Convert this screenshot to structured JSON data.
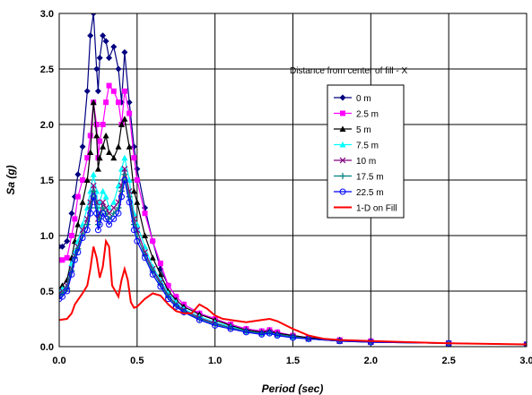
{
  "chart_data": {
    "type": "line",
    "xlabel": "Period (sec)",
    "ylabel": "Sa (g)",
    "xlim": [
      0,
      3.0
    ],
    "ylim": [
      0,
      3.0
    ],
    "x_ticks": [
      "0.0",
      "0.5",
      "1.0",
      "1.5",
      "2.0",
      "2.5",
      "3.0"
    ],
    "y_ticks": [
      "0.0",
      "0.5",
      "1.0",
      "1.5",
      "2.0",
      "2.5",
      "3.0"
    ],
    "grid": true,
    "legend_title": "Distance from center of fill - X",
    "legend_position": "top-right",
    "series": [
      {
        "name": "0 m",
        "color": "#000080",
        "marker": "diamond",
        "x": [
          0,
          0.02,
          0.05,
          0.08,
          0.1,
          0.12,
          0.15,
          0.18,
          0.2,
          0.22,
          0.24,
          0.25,
          0.26,
          0.28,
          0.3,
          0.32,
          0.35,
          0.38,
          0.4,
          0.42,
          0.45,
          0.48,
          0.5,
          0.55,
          0.6,
          0.65,
          0.7,
          0.75,
          0.8,
          0.9,
          1.0,
          1.1,
          1.2,
          1.3,
          1.35,
          1.4,
          1.5,
          1.6,
          1.8,
          2.0,
          2.5,
          3.0
        ],
        "y": [
          0.9,
          0.9,
          0.95,
          1.2,
          1.35,
          1.55,
          1.8,
          2.3,
          2.8,
          3.0,
          2.5,
          2.3,
          2.6,
          2.8,
          2.75,
          2.6,
          2.7,
          2.5,
          2.2,
          2.65,
          2.2,
          1.8,
          1.6,
          1.25,
          0.95,
          0.7,
          0.55,
          0.45,
          0.38,
          0.3,
          0.25,
          0.2,
          0.16,
          0.14,
          0.15,
          0.13,
          0.1,
          0.08,
          0.06,
          0.05,
          0.03,
          0.02
        ]
      },
      {
        "name": "2.5 m",
        "color": "#ff00ff",
        "marker": "square",
        "x": [
          0,
          0.02,
          0.05,
          0.08,
          0.1,
          0.12,
          0.15,
          0.18,
          0.2,
          0.22,
          0.24,
          0.25,
          0.26,
          0.28,
          0.3,
          0.32,
          0.35,
          0.38,
          0.4,
          0.42,
          0.45,
          0.48,
          0.5,
          0.55,
          0.6,
          0.65,
          0.7,
          0.75,
          0.8,
          0.9,
          1.0,
          1.1,
          1.2,
          1.3,
          1.35,
          1.4,
          1.5,
          1.6,
          1.8,
          2.0,
          2.5,
          3.0
        ],
        "y": [
          0.78,
          0.78,
          0.8,
          1.0,
          1.15,
          1.35,
          1.5,
          1.7,
          1.9,
          2.2,
          2.0,
          1.7,
          1.85,
          2.0,
          2.2,
          2.35,
          2.3,
          2.2,
          2.0,
          2.3,
          2.1,
          1.7,
          1.5,
          1.2,
          0.95,
          0.75,
          0.55,
          0.45,
          0.38,
          0.3,
          0.25,
          0.2,
          0.16,
          0.14,
          0.15,
          0.13,
          0.1,
          0.08,
          0.06,
          0.05,
          0.03,
          0.02
        ]
      },
      {
        "name": "5 m",
        "color": "#000000",
        "marker": "triangle",
        "x": [
          0,
          0.02,
          0.05,
          0.08,
          0.1,
          0.12,
          0.15,
          0.18,
          0.2,
          0.22,
          0.24,
          0.25,
          0.26,
          0.28,
          0.3,
          0.32,
          0.35,
          0.38,
          0.4,
          0.42,
          0.45,
          0.48,
          0.5,
          0.55,
          0.6,
          0.65,
          0.7,
          0.75,
          0.8,
          0.9,
          1.0,
          1.1,
          1.2,
          1.3,
          1.35,
          1.4,
          1.5,
          1.6,
          1.8,
          2.0,
          2.5,
          3.0
        ],
        "y": [
          0.52,
          0.55,
          0.6,
          0.8,
          0.95,
          1.1,
          1.3,
          1.5,
          1.75,
          2.2,
          1.9,
          1.6,
          1.7,
          1.8,
          1.9,
          1.75,
          1.7,
          1.8,
          2.0,
          2.05,
          1.8,
          1.4,
          1.3,
          1.0,
          0.8,
          0.65,
          0.5,
          0.42,
          0.36,
          0.29,
          0.24,
          0.19,
          0.15,
          0.13,
          0.14,
          0.12,
          0.1,
          0.08,
          0.06,
          0.05,
          0.03,
          0.02
        ]
      },
      {
        "name": "7.5 m",
        "color": "#00ffff",
        "marker": "triangle",
        "x": [
          0,
          0.02,
          0.05,
          0.08,
          0.1,
          0.12,
          0.15,
          0.18,
          0.2,
          0.22,
          0.24,
          0.25,
          0.26,
          0.28,
          0.3,
          0.32,
          0.35,
          0.38,
          0.4,
          0.42,
          0.45,
          0.48,
          0.5,
          0.55,
          0.6,
          0.65,
          0.7,
          0.75,
          0.8,
          0.9,
          1.0,
          1.1,
          1.2,
          1.3,
          1.35,
          1.4,
          1.5,
          1.6,
          1.8,
          2.0,
          2.5,
          3.0
        ],
        "y": [
          0.5,
          0.52,
          0.55,
          0.75,
          0.85,
          0.95,
          1.1,
          1.25,
          1.4,
          1.55,
          1.4,
          1.2,
          1.3,
          1.4,
          1.35,
          1.25,
          1.3,
          1.45,
          1.6,
          1.7,
          1.5,
          1.2,
          1.1,
          0.9,
          0.72,
          0.6,
          0.48,
          0.4,
          0.34,
          0.27,
          0.22,
          0.18,
          0.14,
          0.12,
          0.13,
          0.11,
          0.09,
          0.07,
          0.05,
          0.04,
          0.03,
          0.02
        ]
      },
      {
        "name": "10 m",
        "color": "#800080",
        "marker": "x",
        "x": [
          0,
          0.02,
          0.05,
          0.08,
          0.1,
          0.12,
          0.15,
          0.18,
          0.2,
          0.22,
          0.24,
          0.25,
          0.26,
          0.28,
          0.3,
          0.32,
          0.35,
          0.38,
          0.4,
          0.42,
          0.45,
          0.48,
          0.5,
          0.55,
          0.6,
          0.65,
          0.7,
          0.75,
          0.8,
          0.9,
          1.0,
          1.1,
          1.2,
          1.3,
          1.35,
          1.4,
          1.5,
          1.6,
          1.8,
          2.0,
          2.5,
          3.0
        ],
        "y": [
          0.48,
          0.5,
          0.55,
          0.7,
          0.82,
          0.9,
          1.05,
          1.15,
          1.3,
          1.45,
          1.3,
          1.15,
          1.2,
          1.3,
          1.25,
          1.2,
          1.25,
          1.3,
          1.45,
          1.6,
          1.4,
          1.15,
          1.05,
          0.85,
          0.7,
          0.58,
          0.46,
          0.38,
          0.33,
          0.26,
          0.21,
          0.17,
          0.14,
          0.12,
          0.13,
          0.11,
          0.09,
          0.07,
          0.05,
          0.04,
          0.03,
          0.02
        ]
      },
      {
        "name": "17.5 m",
        "color": "#008080",
        "marker": "plus",
        "x": [
          0,
          0.02,
          0.05,
          0.08,
          0.1,
          0.12,
          0.15,
          0.18,
          0.2,
          0.22,
          0.24,
          0.25,
          0.26,
          0.28,
          0.3,
          0.32,
          0.35,
          0.38,
          0.4,
          0.42,
          0.45,
          0.48,
          0.5,
          0.55,
          0.6,
          0.65,
          0.7,
          0.75,
          0.8,
          0.9,
          1.0,
          1.1,
          1.2,
          1.3,
          1.35,
          1.4,
          1.5,
          1.6,
          1.8,
          2.0,
          2.5,
          3.0
        ],
        "y": [
          0.46,
          0.48,
          0.52,
          0.68,
          0.8,
          0.88,
          1.0,
          1.1,
          1.25,
          1.4,
          1.25,
          1.1,
          1.15,
          1.25,
          1.2,
          1.15,
          1.2,
          1.25,
          1.4,
          1.55,
          1.35,
          1.1,
          1.0,
          0.82,
          0.68,
          0.56,
          0.45,
          0.37,
          0.32,
          0.25,
          0.2,
          0.17,
          0.14,
          0.12,
          0.13,
          0.11,
          0.09,
          0.07,
          0.05,
          0.04,
          0.03,
          0.02
        ]
      },
      {
        "name": "22.5 m",
        "color": "#0000ff",
        "marker": "circle",
        "x": [
          0,
          0.02,
          0.05,
          0.08,
          0.1,
          0.12,
          0.15,
          0.18,
          0.2,
          0.22,
          0.24,
          0.25,
          0.26,
          0.28,
          0.3,
          0.32,
          0.35,
          0.38,
          0.4,
          0.42,
          0.45,
          0.48,
          0.5,
          0.55,
          0.6,
          0.65,
          0.7,
          0.75,
          0.8,
          0.9,
          1.0,
          1.1,
          1.2,
          1.3,
          1.35,
          1.4,
          1.5,
          1.6,
          1.8,
          2.0,
          2.5,
          3.0
        ],
        "y": [
          0.43,
          0.45,
          0.5,
          0.65,
          0.78,
          0.85,
          0.98,
          1.05,
          1.2,
          1.35,
          1.2,
          1.05,
          1.1,
          1.2,
          1.15,
          1.1,
          1.15,
          1.2,
          1.35,
          1.5,
          1.3,
          1.05,
          0.95,
          0.8,
          0.65,
          0.54,
          0.43,
          0.36,
          0.31,
          0.24,
          0.19,
          0.16,
          0.13,
          0.11,
          0.12,
          0.1,
          0.08,
          0.07,
          0.05,
          0.04,
          0.03,
          0.02
        ]
      },
      {
        "name": "1-D on Fill",
        "color": "#ff0000",
        "marker": "none",
        "x": [
          0,
          0.05,
          0.08,
          0.1,
          0.12,
          0.15,
          0.18,
          0.2,
          0.22,
          0.24,
          0.26,
          0.28,
          0.3,
          0.32,
          0.34,
          0.36,
          0.38,
          0.4,
          0.42,
          0.44,
          0.46,
          0.48,
          0.5,
          0.55,
          0.6,
          0.65,
          0.7,
          0.75,
          0.8,
          0.85,
          0.9,
          0.95,
          1.0,
          1.05,
          1.1,
          1.2,
          1.3,
          1.35,
          1.4,
          1.5,
          1.6,
          1.7,
          1.8,
          2.0,
          2.5,
          3.0
        ],
        "y": [
          0.24,
          0.25,
          0.3,
          0.38,
          0.42,
          0.48,
          0.55,
          0.7,
          0.9,
          0.8,
          0.62,
          0.72,
          0.95,
          0.9,
          0.55,
          0.5,
          0.45,
          0.6,
          0.7,
          0.6,
          0.4,
          0.35,
          0.36,
          0.43,
          0.48,
          0.46,
          0.38,
          0.32,
          0.3,
          0.3,
          0.38,
          0.34,
          0.28,
          0.25,
          0.24,
          0.22,
          0.24,
          0.25,
          0.23,
          0.16,
          0.1,
          0.07,
          0.06,
          0.05,
          0.03,
          0.02
        ]
      }
    ]
  }
}
